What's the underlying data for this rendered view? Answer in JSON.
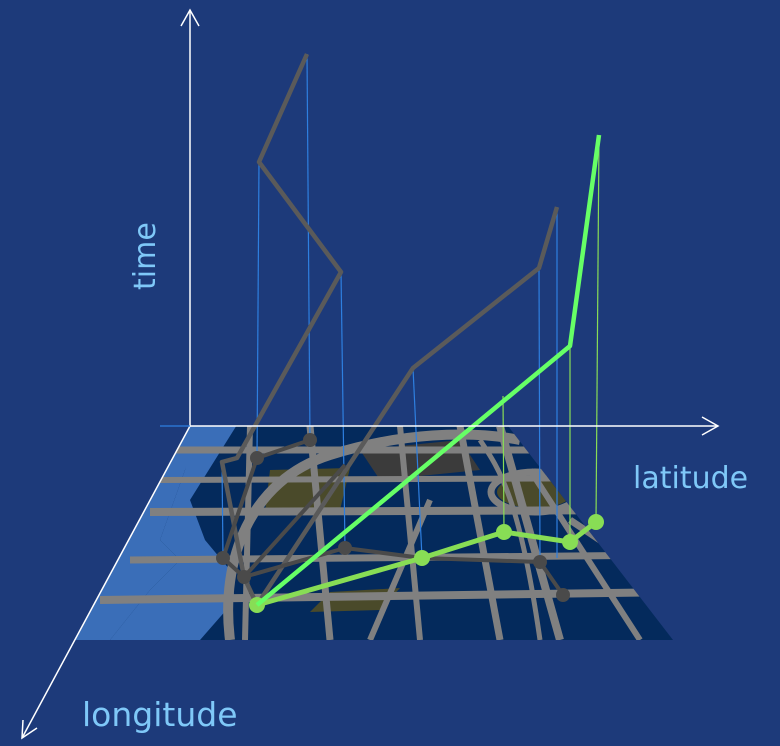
{
  "labels": {
    "time": "time",
    "latitude": "latitude",
    "longitude": "longitude"
  },
  "colors": {
    "background": "#1d3a7a",
    "map_water": "#3a6eb8",
    "map_block": "#042a5c",
    "map_road": "#808080",
    "map_park": "#4a4a2a",
    "trajectory_gray": "#5a5a5a",
    "trajectory_green": "#66ff66",
    "projection_green": "#88dd55",
    "drop_line_blue": "#2e7fe0",
    "axis_white": "#ffffff",
    "label_blue": "#7fc8f8"
  },
  "icons": {
    "time_axis_arrow": "arrow-up-icon",
    "latitude_axis_arrow": "arrow-right-icon",
    "longitude_axis_arrow": "arrow-down-left-icon"
  }
}
